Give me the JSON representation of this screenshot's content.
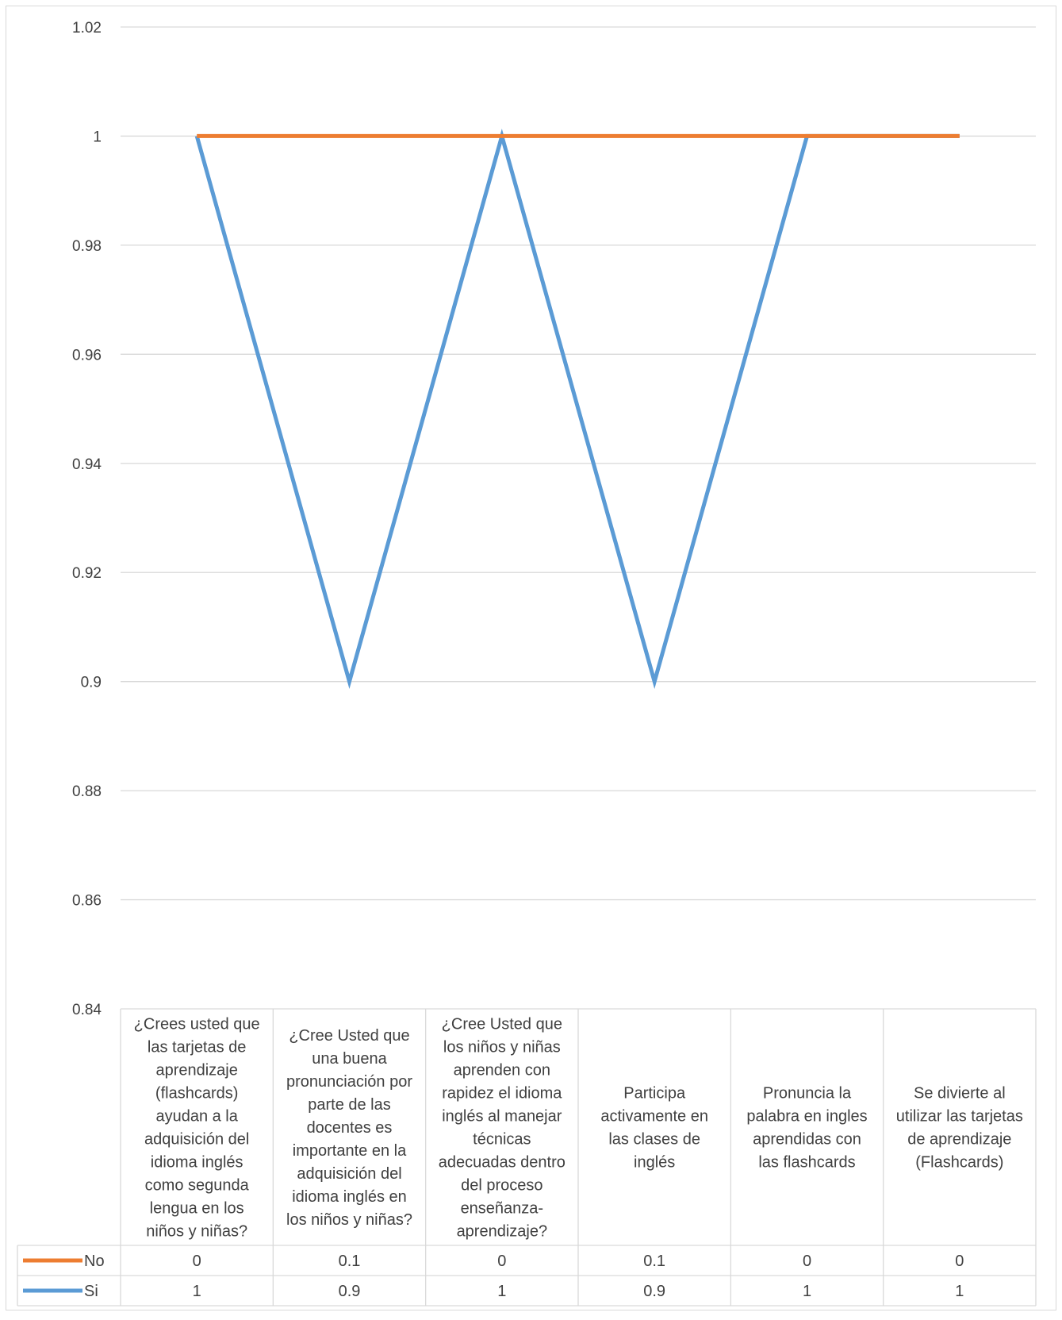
{
  "chart_data": {
    "type": "line",
    "title": "",
    "xlabel": "",
    "ylabel": "",
    "ylim": [
      0.84,
      1.02
    ],
    "yticks": [
      "1.02",
      "1",
      "0.98",
      "0.96",
      "0.94",
      "0.92",
      "0.9",
      "0.88",
      "0.86",
      "0.84"
    ],
    "grid": true,
    "legend": "data-table",
    "categories": [
      [
        "¿Crees usted que",
        "las tarjetas de",
        "aprendizaje",
        "(flashcards)",
        "ayudan a la",
        "adquisición del",
        "idioma inglés",
        "como segunda",
        "lengua en los",
        "niños y niñas?"
      ],
      [
        "¿Cree Usted que",
        "una buena",
        "pronunciación por",
        "parte de las",
        "docentes es",
        "importante en la",
        "adquisición del",
        "idioma inglés en",
        "los niños y niñas?"
      ],
      [
        "¿Cree Usted que",
        "los niños y niñas",
        "aprenden con",
        "rapidez el idioma",
        "inglés al manejar",
        "técnicas",
        "adecuadas dentro",
        "del proceso",
        "enseñanza-",
        "aprendizaje?"
      ],
      [
        "Participa",
        "activamente en",
        "las clases de",
        "inglés"
      ],
      [
        "Pronuncia la",
        "palabra en ingles",
        "aprendidas con",
        "las flashcards"
      ],
      [
        "Se divierte al",
        "utilizar las tarjetas",
        "de aprendizaje",
        "(Flashcards)"
      ]
    ],
    "series": [
      {
        "name": "No",
        "color": "#ED7D31",
        "values": [
          0,
          0.1,
          0,
          0.1,
          0,
          0
        ],
        "labels": [
          "0",
          "0.1",
          "0",
          "0.1",
          "0",
          "0"
        ],
        "plotted": [
          1,
          1,
          1,
          1,
          1,
          1
        ]
      },
      {
        "name": "Si",
        "color": "#5B9BD5",
        "values": [
          1,
          0.9,
          1,
          0.9,
          1,
          1
        ],
        "labels": [
          "1",
          "0.9",
          "1",
          "0.9",
          "1",
          "1"
        ],
        "plotted": [
          1,
          0.9,
          1,
          0.9,
          1,
          1
        ]
      }
    ]
  }
}
